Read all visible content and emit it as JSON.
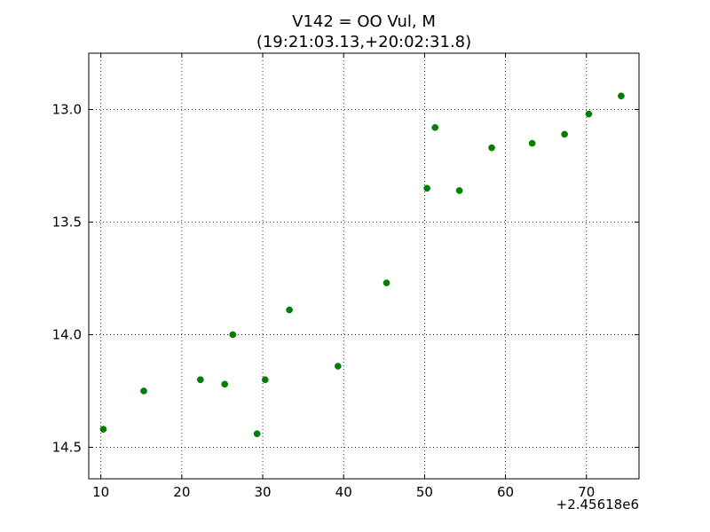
{
  "chart_data": {
    "type": "scatter",
    "title": "V142 = OO Vul, M",
    "subtitle": "(19:21:03.13,+20:02:31.8)",
    "xlabel": "",
    "ylabel": "",
    "x_offset_label": "+2.45618e6",
    "xlim": [
      8.5,
      76.5
    ],
    "ylim": [
      14.64,
      12.75
    ],
    "y_inverted": true,
    "grid": true,
    "x_ticks": [
      10,
      20,
      30,
      40,
      50,
      60,
      70
    ],
    "x_tick_labels": [
      "10",
      "20",
      "30",
      "40",
      "50",
      "60",
      "70"
    ],
    "y_ticks": [
      13.0,
      13.5,
      14.0,
      14.5
    ],
    "y_tick_labels": [
      "13.0",
      "13.5",
      "14.0",
      "14.5"
    ],
    "marker_color": "#007f00",
    "series": [
      {
        "points": [
          {
            "x": 10.3,
            "y": 14.42
          },
          {
            "x": 15.3,
            "y": 14.25
          },
          {
            "x": 22.3,
            "y": 14.2
          },
          {
            "x": 25.3,
            "y": 14.22
          },
          {
            "x": 26.3,
            "y": 14.0
          },
          {
            "x": 29.3,
            "y": 14.44
          },
          {
            "x": 30.3,
            "y": 14.2
          },
          {
            "x": 33.3,
            "y": 13.89
          },
          {
            "x": 39.3,
            "y": 14.14
          },
          {
            "x": 45.3,
            "y": 13.77
          },
          {
            "x": 50.3,
            "y": 13.35
          },
          {
            "x": 51.3,
            "y": 13.08
          },
          {
            "x": 54.3,
            "y": 13.36
          },
          {
            "x": 58.3,
            "y": 13.17
          },
          {
            "x": 63.3,
            "y": 13.15
          },
          {
            "x": 67.3,
            "y": 13.11
          },
          {
            "x": 70.3,
            "y": 13.02
          },
          {
            "x": 74.3,
            "y": 12.94
          }
        ]
      }
    ]
  }
}
